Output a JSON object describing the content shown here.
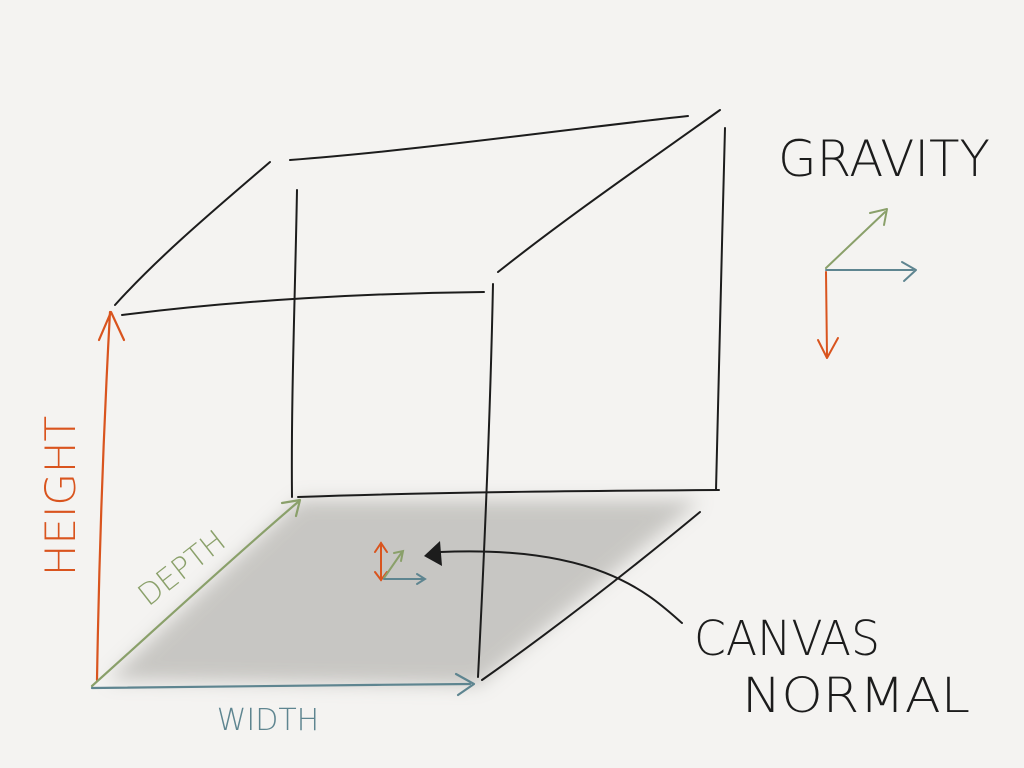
{
  "labels": {
    "height": "HEIGHT",
    "depth": "DEPTH",
    "width": "WIDTH",
    "gravity": "GRAVITY",
    "canvas": "CANVAS",
    "normal": "NORMAL"
  },
  "colors": {
    "background": "#f4f3f1",
    "ink": "#1c1c1c",
    "height_axis": "#d9541e",
    "depth_axis": "#8aa06a",
    "width_axis": "#5e8590",
    "floor_shading": "#b9b8b4"
  }
}
